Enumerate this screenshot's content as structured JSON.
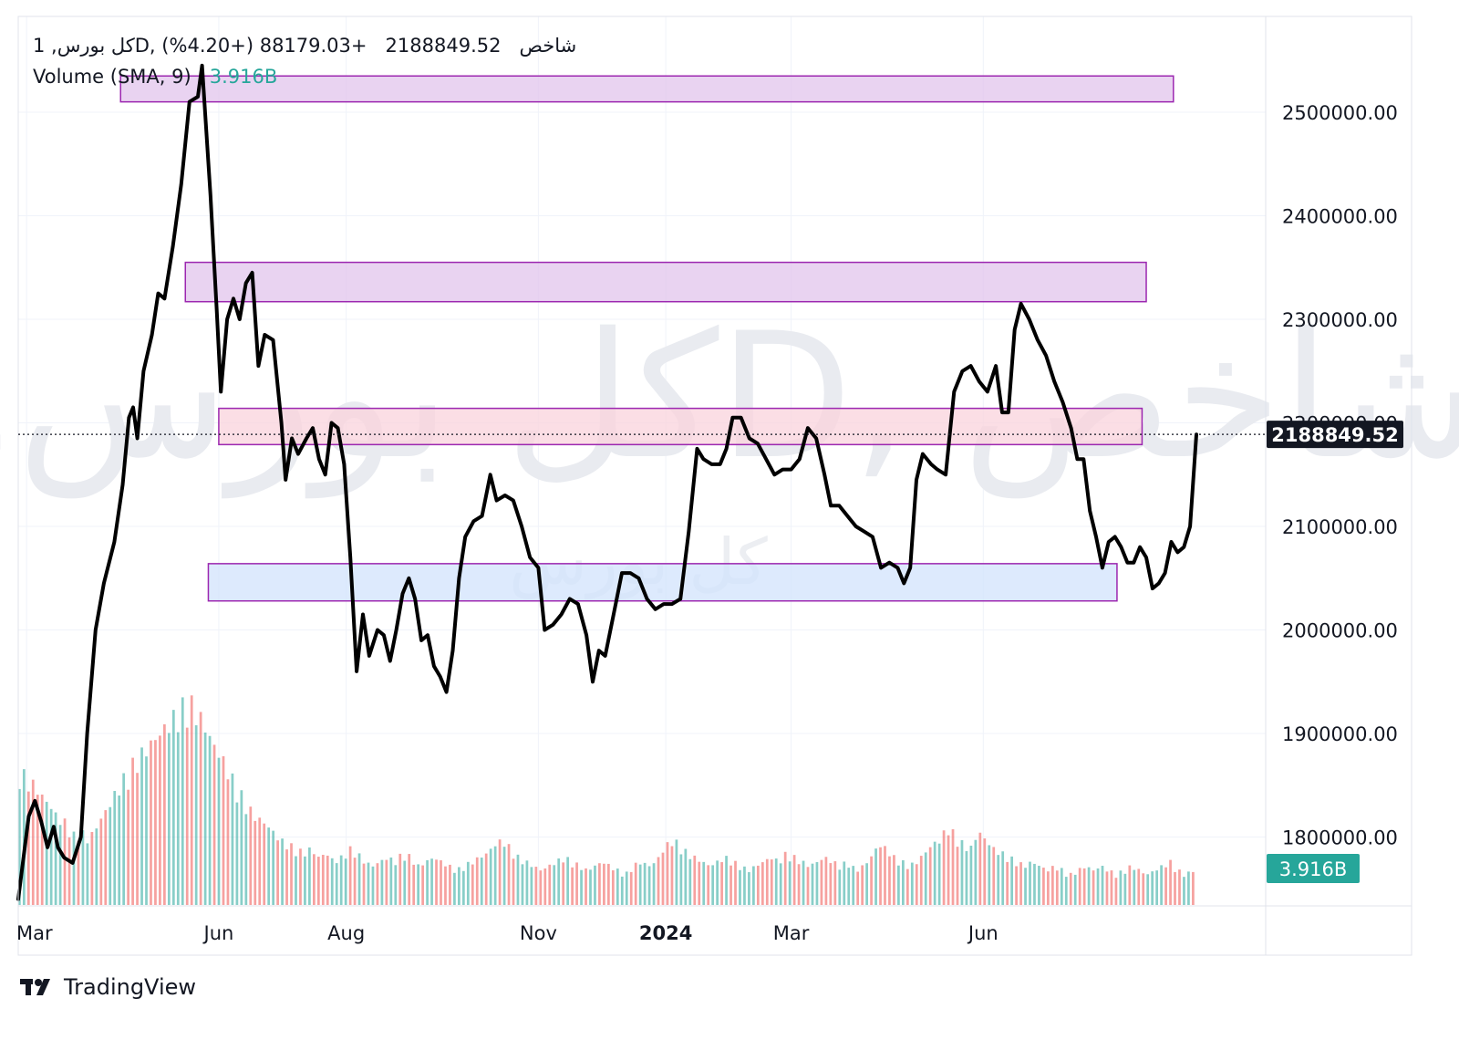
{
  "legend": {
    "symbol": "1 ,كل بورسD, شاخص",
    "last": "2188849.52",
    "change": "+88179.03",
    "change_pct": "(+4.20%)",
    "volume_label": "Volume (SMA, 9)",
    "volume_value": "3.916B"
  },
  "watermark": {
    "big": "1 ,كل بورسD, شاخص",
    "small": "كل بورس"
  },
  "footer": {
    "brand": "TradingView"
  },
  "colors": {
    "line": "#000000",
    "grid": "#f0f3fa",
    "zone_purple": "#e1c4ec",
    "zone_red": "#f9d3dc",
    "zone_blue": "#d2e3fc",
    "zone_border": "#9c27b0",
    "vol_up": "#26a69a",
    "vol_down": "#ef5350",
    "badge_price": "#131722",
    "badge_volume": "#26a69a"
  },
  "chart_data": {
    "type": "line",
    "title": "",
    "xlabel": "",
    "ylabel": "",
    "y_ticks": [
      "2500000.00",
      "2400000.00",
      "2300000.00",
      "2200000.00",
      "2100000.00",
      "2000000.00",
      "1900000.00",
      "1800000.00"
    ],
    "y_tick_values": [
      2500000,
      2400000,
      2300000,
      2200000,
      2100000,
      2000000,
      1900000,
      1800000
    ],
    "ylim": [
      1735000,
      2550000
    ],
    "x_ticks": [
      {
        "label": "Mar",
        "date": "2023-03-01",
        "bold": false
      },
      {
        "label": "Jun",
        "date": "2023-06-01",
        "bold": false
      },
      {
        "label": "Aug",
        "date": "2023-08-01",
        "bold": false
      },
      {
        "label": "Nov",
        "date": "2023-11-01",
        "bold": false
      },
      {
        "label": "2024",
        "date": "2024-01-01",
        "bold": true
      },
      {
        "label": "Mar",
        "date": "2024-03-01",
        "bold": false
      },
      {
        "label": "Jun",
        "date": "2024-06-01",
        "bold": false
      }
    ],
    "last_price_label": "2188849.52",
    "last_price": 2188849.52,
    "volume_badge": "3.916B",
    "zones": [
      {
        "start": "2023-04-15",
        "end": "2024-08-31",
        "high": 2535000,
        "low": 2510000,
        "kind": "purple"
      },
      {
        "start": "2023-05-16",
        "end": "2024-08-18",
        "high": 2355000,
        "low": 2317000,
        "kind": "purple"
      },
      {
        "start": "2023-06-01",
        "end": "2024-08-16",
        "high": 2214000,
        "low": 2179000,
        "kind": "red"
      },
      {
        "start": "2023-05-27",
        "end": "2024-08-04",
        "high": 2064000,
        "low": 2028000,
        "kind": "blue"
      }
    ],
    "series": [
      {
        "points": [
          [
            "2023-02-25",
            1740000
          ],
          [
            "2023-03-02",
            1820000
          ],
          [
            "2023-03-05",
            1835000
          ],
          [
            "2023-03-08",
            1815000
          ],
          [
            "2023-03-11",
            1790000
          ],
          [
            "2023-03-14",
            1810000
          ],
          [
            "2023-03-16",
            1790000
          ],
          [
            "2023-03-19",
            1780000
          ],
          [
            "2023-03-23",
            1775000
          ],
          [
            "2023-03-27",
            1800000
          ],
          [
            "2023-03-30",
            1900000
          ],
          [
            "2023-04-03",
            2000000
          ],
          [
            "2023-04-07",
            2045000
          ],
          [
            "2023-04-12",
            2085000
          ],
          [
            "2023-04-16",
            2140000
          ],
          [
            "2023-04-19",
            2205000
          ],
          [
            "2023-04-21",
            2215000
          ],
          [
            "2023-04-23",
            2185000
          ],
          [
            "2023-04-26",
            2250000
          ],
          [
            "2023-04-30",
            2285000
          ],
          [
            "2023-05-03",
            2325000
          ],
          [
            "2023-05-06",
            2320000
          ],
          [
            "2023-05-10",
            2370000
          ],
          [
            "2023-05-14",
            2430000
          ],
          [
            "2023-05-18",
            2510000
          ],
          [
            "2023-05-22",
            2515000
          ],
          [
            "2023-05-24",
            2545000
          ],
          [
            "2023-05-28",
            2420000
          ],
          [
            "2023-05-31",
            2310000
          ],
          [
            "2023-06-02",
            2230000
          ],
          [
            "2023-06-05",
            2300000
          ],
          [
            "2023-06-08",
            2320000
          ],
          [
            "2023-06-11",
            2300000
          ],
          [
            "2023-06-14",
            2335000
          ],
          [
            "2023-06-17",
            2345000
          ],
          [
            "2023-06-20",
            2255000
          ],
          [
            "2023-06-23",
            2285000
          ],
          [
            "2023-06-27",
            2280000
          ],
          [
            "2023-07-01",
            2200000
          ],
          [
            "2023-07-03",
            2145000
          ],
          [
            "2023-07-06",
            2185000
          ],
          [
            "2023-07-09",
            2170000
          ],
          [
            "2023-07-13",
            2185000
          ],
          [
            "2023-07-16",
            2195000
          ],
          [
            "2023-07-19",
            2165000
          ],
          [
            "2023-07-22",
            2150000
          ],
          [
            "2023-07-25",
            2200000
          ],
          [
            "2023-07-28",
            2195000
          ],
          [
            "2023-07-31",
            2160000
          ],
          [
            "2023-08-03",
            2070000
          ],
          [
            "2023-08-06",
            1960000
          ],
          [
            "2023-08-09",
            2015000
          ],
          [
            "2023-08-12",
            1975000
          ],
          [
            "2023-08-16",
            2000000
          ],
          [
            "2023-08-19",
            1995000
          ],
          [
            "2023-08-22",
            1970000
          ],
          [
            "2023-08-25",
            2000000
          ],
          [
            "2023-08-28",
            2035000
          ],
          [
            "2023-08-31",
            2050000
          ],
          [
            "2023-09-03",
            2030000
          ],
          [
            "2023-09-06",
            1990000
          ],
          [
            "2023-09-09",
            1995000
          ],
          [
            "2023-09-12",
            1965000
          ],
          [
            "2023-09-15",
            1955000
          ],
          [
            "2023-09-18",
            1940000
          ],
          [
            "2023-09-21",
            1980000
          ],
          [
            "2023-09-24",
            2050000
          ],
          [
            "2023-09-27",
            2090000
          ],
          [
            "2023-10-01",
            2105000
          ],
          [
            "2023-10-05",
            2110000
          ],
          [
            "2023-10-09",
            2150000
          ],
          [
            "2023-10-12",
            2125000
          ],
          [
            "2023-10-16",
            2130000
          ],
          [
            "2023-10-20",
            2125000
          ],
          [
            "2023-10-24",
            2100000
          ],
          [
            "2023-10-28",
            2070000
          ],
          [
            "2023-11-01",
            2060000
          ],
          [
            "2023-11-04",
            2000000
          ],
          [
            "2023-11-08",
            2005000
          ],
          [
            "2023-11-12",
            2015000
          ],
          [
            "2023-11-16",
            2030000
          ],
          [
            "2023-11-20",
            2025000
          ],
          [
            "2023-11-24",
            1995000
          ],
          [
            "2023-11-27",
            1950000
          ],
          [
            "2023-11-30",
            1980000
          ],
          [
            "2023-12-03",
            1975000
          ],
          [
            "2023-12-07",
            2015000
          ],
          [
            "2023-12-11",
            2055000
          ],
          [
            "2023-12-15",
            2055000
          ],
          [
            "2023-12-19",
            2050000
          ],
          [
            "2023-12-23",
            2030000
          ],
          [
            "2023-12-27",
            2020000
          ],
          [
            "2023-12-31",
            2025000
          ],
          [
            "2024-01-04",
            2025000
          ],
          [
            "2024-01-08",
            2030000
          ],
          [
            "2024-01-12",
            2095000
          ],
          [
            "2024-01-16",
            2175000
          ],
          [
            "2024-01-19",
            2165000
          ],
          [
            "2024-01-23",
            2160000
          ],
          [
            "2024-01-27",
            2160000
          ],
          [
            "2024-01-30",
            2175000
          ],
          [
            "2024-02-02",
            2205000
          ],
          [
            "2024-02-06",
            2205000
          ],
          [
            "2024-02-10",
            2185000
          ],
          [
            "2024-02-14",
            2180000
          ],
          [
            "2024-02-18",
            2165000
          ],
          [
            "2024-02-22",
            2150000
          ],
          [
            "2024-02-26",
            2155000
          ],
          [
            "2024-03-01",
            2155000
          ],
          [
            "2024-03-05",
            2165000
          ],
          [
            "2024-03-09",
            2195000
          ],
          [
            "2024-03-13",
            2185000
          ],
          [
            "2024-03-17",
            2150000
          ],
          [
            "2024-03-20",
            2120000
          ],
          [
            "2024-03-24",
            2120000
          ],
          [
            "2024-03-28",
            2110000
          ],
          [
            "2024-04-01",
            2100000
          ],
          [
            "2024-04-05",
            2095000
          ],
          [
            "2024-04-09",
            2090000
          ],
          [
            "2024-04-13",
            2060000
          ],
          [
            "2024-04-17",
            2065000
          ],
          [
            "2024-04-21",
            2060000
          ],
          [
            "2024-04-24",
            2045000
          ],
          [
            "2024-04-27",
            2060000
          ],
          [
            "2024-04-30",
            2145000
          ],
          [
            "2024-05-03",
            2170000
          ],
          [
            "2024-05-07",
            2160000
          ],
          [
            "2024-05-10",
            2155000
          ],
          [
            "2024-05-14",
            2150000
          ],
          [
            "2024-05-18",
            2230000
          ],
          [
            "2024-05-22",
            2250000
          ],
          [
            "2024-05-26",
            2255000
          ],
          [
            "2024-05-30",
            2240000
          ],
          [
            "2024-06-03",
            2230000
          ],
          [
            "2024-06-07",
            2255000
          ],
          [
            "2024-06-10",
            2210000
          ],
          [
            "2024-06-13",
            2210000
          ],
          [
            "2024-06-16",
            2290000
          ],
          [
            "2024-06-19",
            2315000
          ],
          [
            "2024-06-23",
            2300000
          ],
          [
            "2024-06-27",
            2280000
          ],
          [
            "2024-07-01",
            2265000
          ],
          [
            "2024-07-05",
            2240000
          ],
          [
            "2024-07-09",
            2220000
          ],
          [
            "2024-07-13",
            2195000
          ],
          [
            "2024-07-16",
            2165000
          ],
          [
            "2024-07-19",
            2165000
          ],
          [
            "2024-07-22",
            2115000
          ],
          [
            "2024-07-25",
            2090000
          ],
          [
            "2024-07-28",
            2060000
          ],
          [
            "2024-07-31",
            2085000
          ],
          [
            "2024-08-03",
            2090000
          ],
          [
            "2024-08-06",
            2080000
          ],
          [
            "2024-08-09",
            2065000
          ],
          [
            "2024-08-12",
            2065000
          ],
          [
            "2024-08-15",
            2080000
          ],
          [
            "2024-08-18",
            2070000
          ],
          [
            "2024-08-21",
            2040000
          ],
          [
            "2024-08-24",
            2045000
          ],
          [
            "2024-08-27",
            2055000
          ],
          [
            "2024-08-30",
            2085000
          ],
          [
            "2024-09-02",
            2075000
          ],
          [
            "2024-09-05",
            2080000
          ],
          [
            "2024-09-08",
            2100000
          ],
          [
            "2024-09-11",
            2188849.52
          ]
        ]
      }
    ],
    "volume": {
      "start": "2023-02-25",
      "end": "2024-09-11",
      "max": 7000000000,
      "pattern_note": "",
      "levels": [
        0.62,
        0.58,
        0.55,
        0.5,
        0.46,
        0.4,
        0.38,
        0.32,
        0.34,
        0.3,
        0.36,
        0.42,
        0.48,
        0.55,
        0.6,
        0.66,
        0.7,
        0.74,
        0.78,
        0.82,
        0.86,
        0.9,
        0.94,
        0.9,
        0.84,
        0.76,
        0.7,
        0.64,
        0.56,
        0.5,
        0.44,
        0.4,
        0.38,
        0.34,
        0.3,
        0.28,
        0.26,
        0.24,
        0.26,
        0.22,
        0.24,
        0.2,
        0.22,
        0.26,
        0.24,
        0.2,
        0.18,
        0.2,
        0.22,
        0.2,
        0.24,
        0.22,
        0.18,
        0.2,
        0.22,
        0.2,
        0.18,
        0.16,
        0.18,
        0.2,
        0.22,
        0.24,
        0.28,
        0.3,
        0.26,
        0.22,
        0.2,
        0.18,
        0.16,
        0.18,
        0.2,
        0.22,
        0.2,
        0.18,
        0.16,
        0.18,
        0.2,
        0.18,
        0.16,
        0.14,
        0.18,
        0.2,
        0.18,
        0.2,
        0.26,
        0.3,
        0.28,
        0.24,
        0.22,
        0.2,
        0.18,
        0.2,
        0.22,
        0.2,
        0.18,
        0.16,
        0.18,
        0.2,
        0.22,
        0.2,
        0.24,
        0.22,
        0.2,
        0.18,
        0.2,
        0.22,
        0.2,
        0.18,
        0.2,
        0.16,
        0.18,
        0.22,
        0.28,
        0.26,
        0.22,
        0.2,
        0.18,
        0.2,
        0.24,
        0.28,
        0.3,
        0.36,
        0.32,
        0.28,
        0.26,
        0.34,
        0.3,
        0.26,
        0.24,
        0.22,
        0.2,
        0.18,
        0.2,
        0.18,
        0.16,
        0.18,
        0.16,
        0.14,
        0.16,
        0.18,
        0.16,
        0.18,
        0.16,
        0.14,
        0.16,
        0.18,
        0.16,
        0.14,
        0.16,
        0.18,
        0.2,
        0.16,
        0.14,
        0.16
      ]
    }
  }
}
